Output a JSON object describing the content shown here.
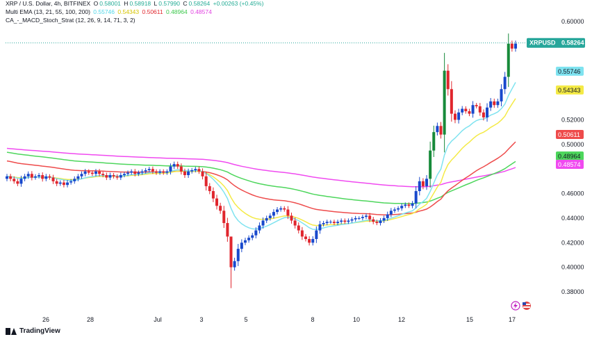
{
  "header": {
    "line1": {
      "symbol": "XRP / U.S. Dollar, 4h, BITFINEX",
      "o_label": "O",
      "o": "0.58001",
      "h_label": "H",
      "h": "0.58918",
      "l_label": "L",
      "l": "0.57990",
      "c_label": "C",
      "c": "0.58264",
      "change": "+0.00263 (+0.45%)"
    },
    "line2": {
      "name": "Multi EMA (13, 21, 55, 100, 200)",
      "v1": "0.55746",
      "v2": "0.54343",
      "v3": "0.50611",
      "v4": "0.48964",
      "v5": "0.48574"
    },
    "line3": {
      "name": "CA_-_MACD_Stoch_Strat (12, 26, 9, 14, 71, 3, 2)"
    }
  },
  "brand": "TradingView",
  "colors": {
    "up": "#1848cc",
    "down": "#e0262d",
    "up_big": "#178a3a",
    "ema13": "#7fe3f0",
    "ema21": "#f4ea46",
    "ema55": "#ee4b4b",
    "ema100": "#4dd65c",
    "ema200": "#f04af0",
    "ticker_bg": "#26a69a"
  },
  "chart_data": {
    "type": "candlestick",
    "title": "XRP / U.S. Dollar, 4h, BITFINEX",
    "y_axis": {
      "ticks": [
        "0.60000",
        "0.52000",
        "0.50000",
        "0.46000",
        "0.44000",
        "0.42000",
        "0.40000",
        "0.38000"
      ],
      "ylim": [
        0.37,
        0.61
      ]
    },
    "x_axis": {
      "ticks": [
        "26",
        "28",
        "Jul",
        "3",
        "5",
        "8",
        "10",
        "12",
        "15",
        "17"
      ]
    },
    "price_label": {
      "symbol": "XRPUSD",
      "value": "0.58264"
    },
    "ema_labels": [
      {
        "name": "EMA 13",
        "value": "0.55746",
        "color": "#7fe3f0"
      },
      {
        "name": "EMA 21",
        "value": "0.54343",
        "color": "#f4ea46"
      },
      {
        "name": "EMA 55",
        "value": "0.50611",
        "color": "#ee4b4b"
      },
      {
        "name": "EMA 100",
        "value": "0.48964",
        "color": "#4dd65c"
      },
      {
        "name": "EMA 200",
        "value": "0.48574",
        "color": "#f04af0"
      }
    ],
    "closes": [
      0.474,
      0.472,
      0.47,
      0.468,
      0.472,
      0.474,
      0.476,
      0.473,
      0.474,
      0.475,
      0.472,
      0.474,
      0.473,
      0.47,
      0.468,
      0.469,
      0.467,
      0.469,
      0.47,
      0.472,
      0.474,
      0.476,
      0.478,
      0.477,
      0.476,
      0.478,
      0.476,
      0.475,
      0.473,
      0.475,
      0.474,
      0.473,
      0.475,
      0.476,
      0.477,
      0.478,
      0.476,
      0.477,
      0.478,
      0.479,
      0.48,
      0.478,
      0.477,
      0.478,
      0.477,
      0.478,
      0.482,
      0.484,
      0.482,
      0.478,
      0.475,
      0.478,
      0.479,
      0.48,
      0.478,
      0.474,
      0.466,
      0.462,
      0.456,
      0.45,
      0.446,
      0.436,
      0.425,
      0.4,
      0.405,
      0.415,
      0.42,
      0.422,
      0.424,
      0.426,
      0.43,
      0.434,
      0.438,
      0.44,
      0.442,
      0.445,
      0.447,
      0.448,
      0.447,
      0.442,
      0.438,
      0.434,
      0.43,
      0.425,
      0.423,
      0.42,
      0.423,
      0.43,
      0.435,
      0.436,
      0.437,
      0.437,
      0.436,
      0.437,
      0.438,
      0.437,
      0.438,
      0.439,
      0.44,
      0.44,
      0.441,
      0.442,
      0.439,
      0.437,
      0.436,
      0.438,
      0.44,
      0.443,
      0.446,
      0.447,
      0.448,
      0.45,
      0.451,
      0.45,
      0.452,
      0.462,
      0.47,
      0.466,
      0.472,
      0.495,
      0.51,
      0.515,
      0.508,
      0.56,
      0.545,
      0.525,
      0.52,
      0.526,
      0.529,
      0.527,
      0.525,
      0.532,
      0.531,
      0.526,
      0.522,
      0.53,
      0.535,
      0.532,
      0.535,
      0.545,
      0.555,
      0.582,
      0.578,
      0.582
    ]
  }
}
